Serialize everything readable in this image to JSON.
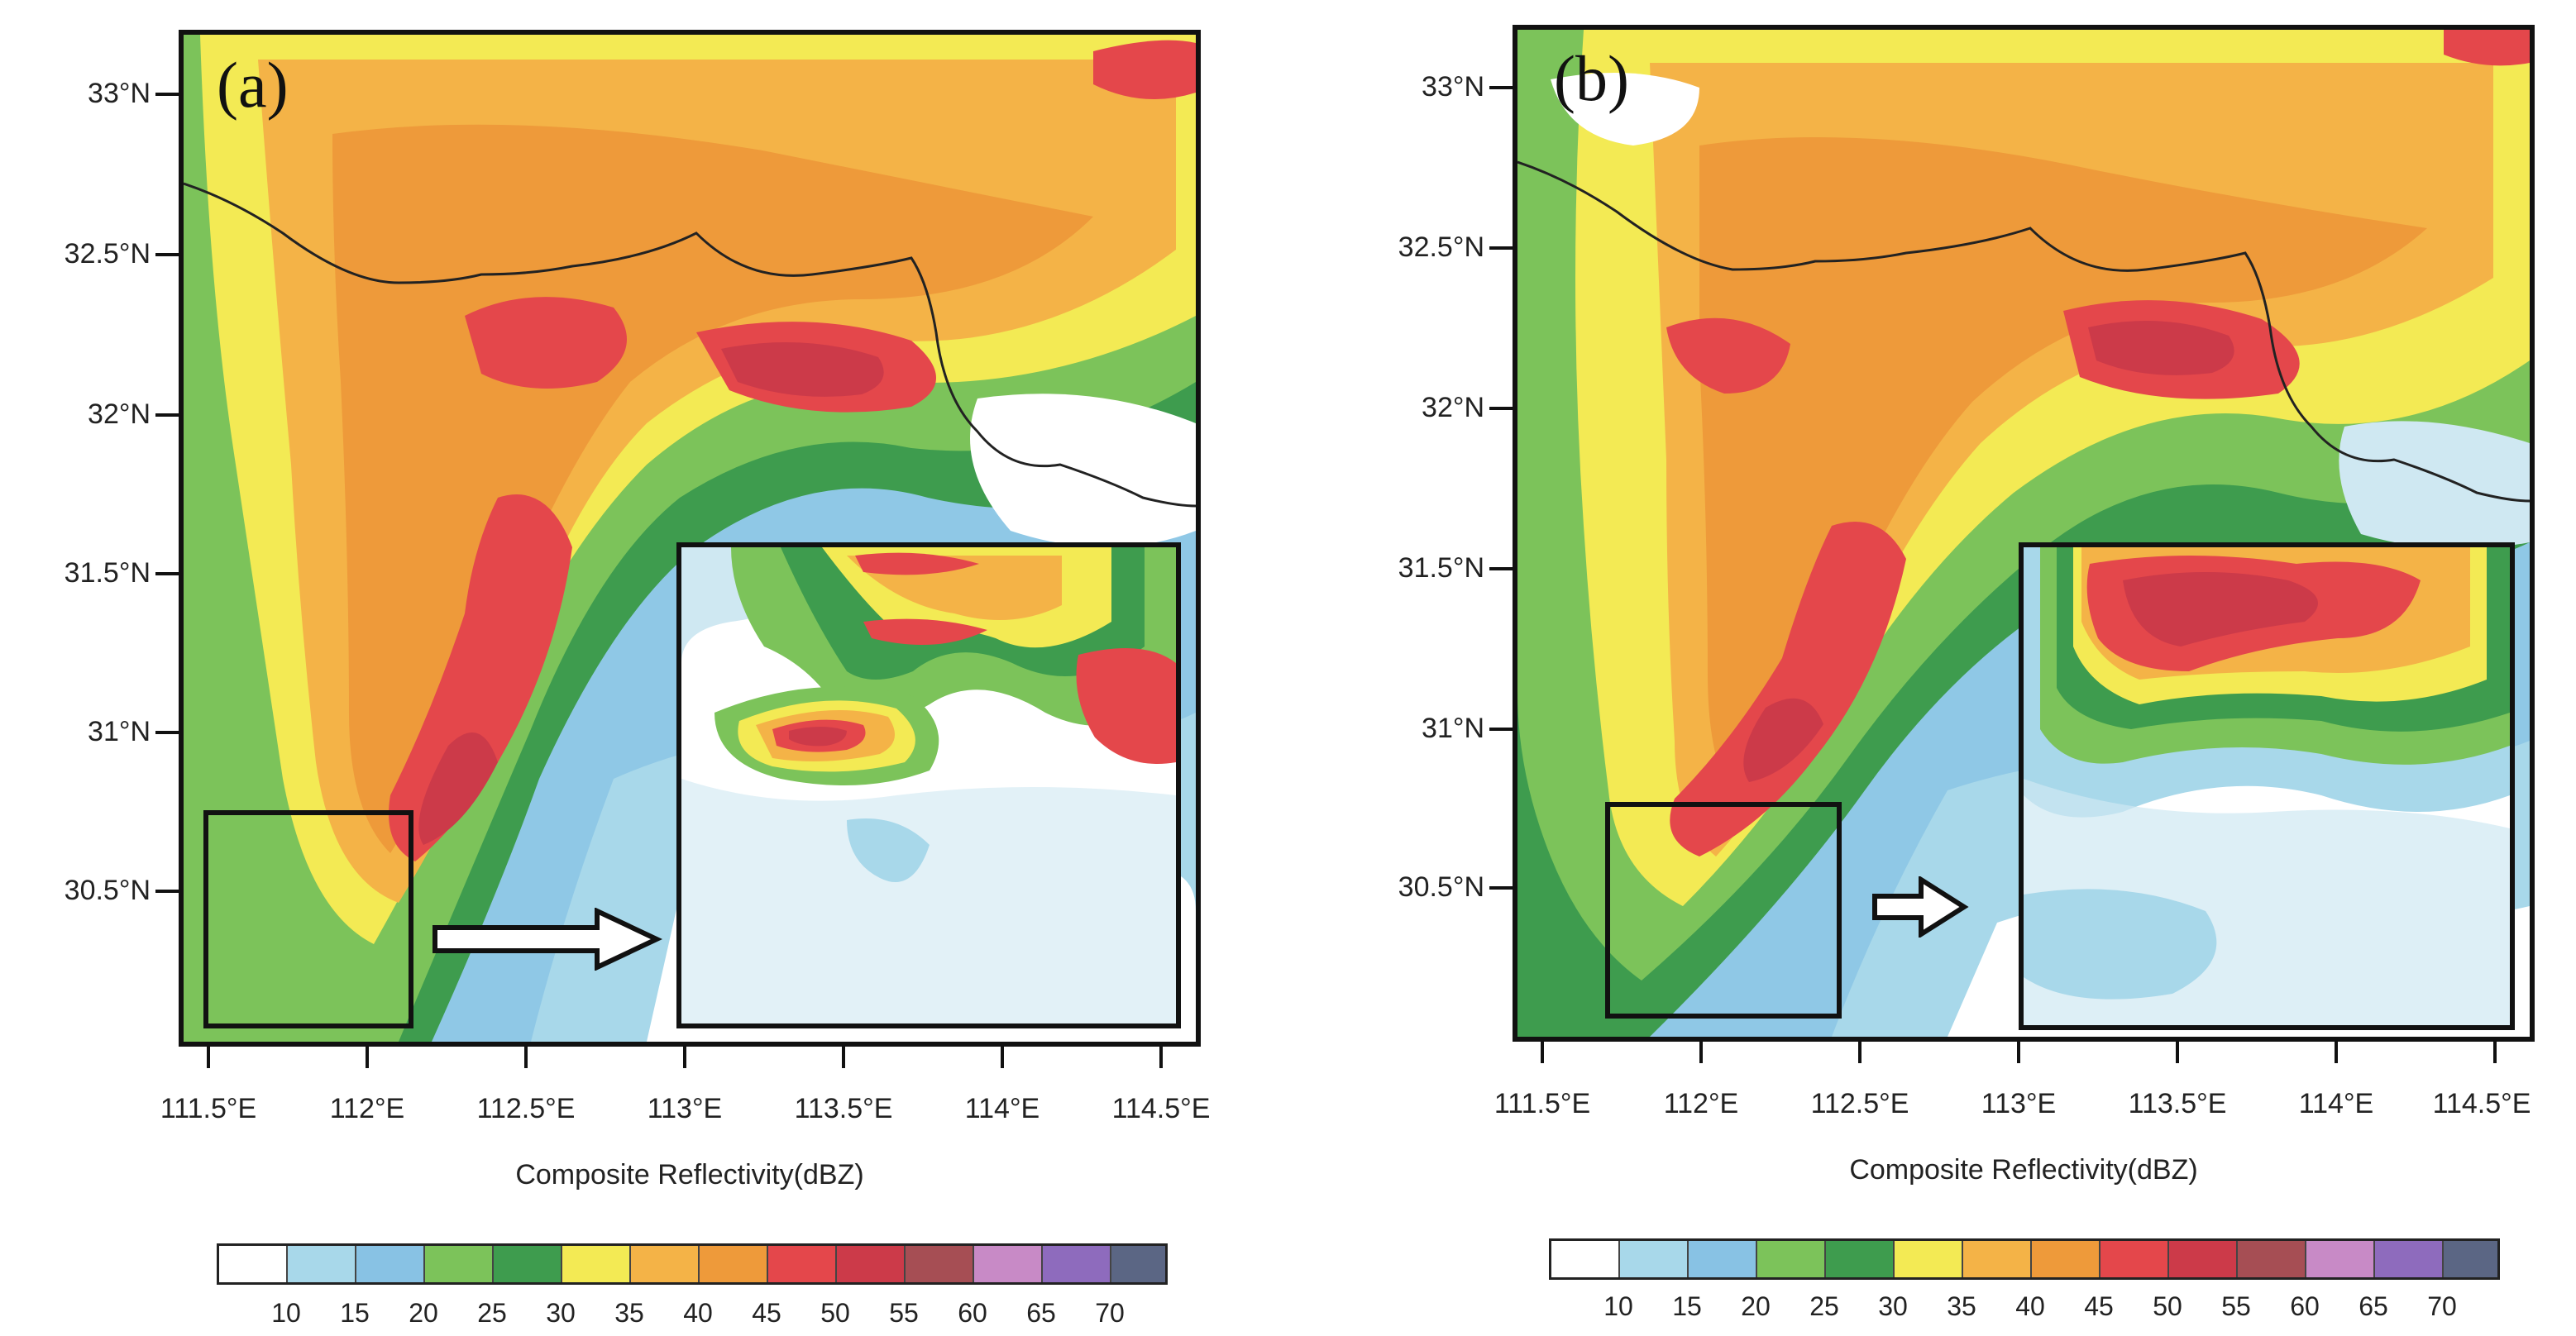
{
  "panels": [
    {
      "letter": "(a)",
      "lat_labels": [
        "33°N",
        "32.5°N",
        "32°N",
        "31.5°N",
        "31°N",
        "30.5°N"
      ],
      "lon_labels": [
        "111.5°E",
        "112°E",
        "112.5°E",
        "113°E",
        "113.5°E",
        "114°E",
        "114.5°E"
      ],
      "axis_title": "Composite Reflectivity(dBZ)"
    },
    {
      "letter": "(b)",
      "lat_labels": [
        "33°N",
        "32.5°N",
        "32°N",
        "31.5°N",
        "31°N",
        "30.5°N"
      ],
      "lon_labels": [
        "111.5°E",
        "112°E",
        "112.5°E",
        "113°E",
        "113.5°E",
        "114°E",
        "114.5°E"
      ],
      "axis_title": "Composite Reflectivity(dBZ)"
    }
  ],
  "colorbar": {
    "labels": [
      "10",
      "15",
      "20",
      "25",
      "30",
      "35",
      "40",
      "45",
      "50",
      "55",
      "60",
      "65",
      "70"
    ],
    "colors": [
      "#ffffff",
      "#a8d8ea",
      "#88c2e4",
      "#7cc35a",
      "#3e9c4e",
      "#f3ea54",
      "#f4b347",
      "#ee9a3a",
      "#e4474b",
      "#cc3a49",
      "#a64e54",
      "#c88ac6",
      "#8e6bbd",
      "#5b6684"
    ]
  }
}
